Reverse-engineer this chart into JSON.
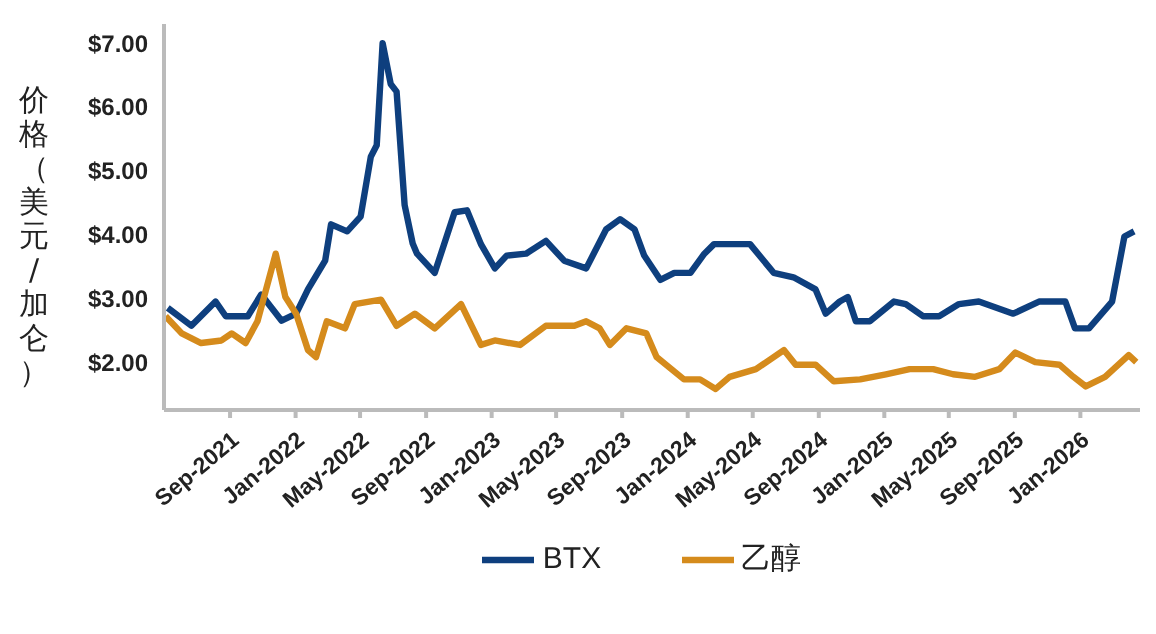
{
  "chart_data": {
    "type": "line",
    "ylabel": "价格（美元/加仑）",
    "legend": "bottom",
    "grid": false,
    "marker": "none",
    "line_style": "solid",
    "xlim": [
      "2021-05-01",
      "2026-04-22"
    ],
    "xticks": [
      {
        "value": "2021-09-01",
        "label": "Sep-2021"
      },
      {
        "value": "2022-01-01",
        "label": "Jan-2022"
      },
      {
        "value": "2022-05-01",
        "label": "May-2022"
      },
      {
        "value": "2022-09-01",
        "label": "Sep-2022"
      },
      {
        "value": "2023-01-01",
        "label": "Jan-2023"
      },
      {
        "value": "2023-05-01",
        "label": "May-2023"
      },
      {
        "value": "2023-09-01",
        "label": "Sep-2023"
      },
      {
        "value": "2024-01-01",
        "label": "Jan-2024"
      },
      {
        "value": "2024-05-01",
        "label": "May-2024"
      },
      {
        "value": "2024-09-01",
        "label": "Sep-2024"
      },
      {
        "value": "2025-01-01",
        "label": "Jan-2025"
      },
      {
        "value": "2025-05-01",
        "label": "May-2025"
      },
      {
        "value": "2025-09-01",
        "label": "Sep-2025"
      },
      {
        "value": "2026-01-01",
        "label": "Jan-2026"
      }
    ],
    "ylim": [
      1.25,
      7.3
    ],
    "yticks": [
      {
        "value": 2,
        "label": "$2.00"
      },
      {
        "value": 3,
        "label": "$3.00"
      },
      {
        "value": 4,
        "label": "$4.00"
      },
      {
        "value": 5,
        "label": "$5.00"
      },
      {
        "value": 6,
        "label": "$6.00"
      },
      {
        "value": 7,
        "label": "$7.00"
      }
    ],
    "series": [
      {
        "name": "BTX",
        "color": "#0e3f7e",
        "x": [
          "2021-05-08",
          "2021-06-21",
          "2021-08-05",
          "2021-08-24",
          "2021-10-04",
          "2021-10-29",
          "2021-12-06",
          "2022-01-02",
          "2022-01-24",
          "2022-02-25",
          "2022-03-08",
          "2022-04-07",
          "2022-05-02",
          "2022-05-21",
          "2022-06-01",
          "2022-06-12",
          "2022-06-27",
          "2022-07-08",
          "2022-07-23",
          "2022-08-07",
          "2022-08-15",
          "2022-09-17",
          "2022-10-24",
          "2022-11-16",
          "2022-12-12",
          "2023-01-07",
          "2023-01-29",
          "2023-03-06",
          "2023-04-12",
          "2023-05-16",
          "2023-06-26",
          "2023-08-02",
          "2023-08-28",
          "2023-09-24",
          "2023-10-12",
          "2023-11-11",
          "2023-12-07",
          "2024-01-06",
          "2024-02-01",
          "2024-02-19",
          "2024-04-26",
          "2024-06-09",
          "2024-07-16",
          "2024-08-26",
          "2024-09-14",
          "2024-10-10",
          "2024-10-25",
          "2024-11-09",
          "2024-12-05",
          "2025-01-19",
          "2025-02-10",
          "2025-03-14",
          "2025-04-13",
          "2025-05-20",
          "2025-06-26",
          "2025-08-29",
          "2025-10-16",
          "2025-12-04",
          "2025-12-22",
          "2026-01-17",
          "2026-03-01",
          "2026-03-24",
          "2026-04-11"
        ],
        "values": [
          2.85,
          2.57,
          2.95,
          2.72,
          2.72,
          3.06,
          2.65,
          2.76,
          3.14,
          3.59,
          4.16,
          4.05,
          4.28,
          5.22,
          5.4,
          7.0,
          6.36,
          6.24,
          4.46,
          3.86,
          3.7,
          3.4,
          4.35,
          4.38,
          3.85,
          3.47,
          3.67,
          3.7,
          3.9,
          3.59,
          3.47,
          4.08,
          4.24,
          4.08,
          3.67,
          3.29,
          3.4,
          3.4,
          3.7,
          3.85,
          3.85,
          3.4,
          3.33,
          3.14,
          2.76,
          2.95,
          3.02,
          2.64,
          2.64,
          2.95,
          2.91,
          2.72,
          2.72,
          2.91,
          2.95,
          2.76,
          2.95,
          2.95,
          2.53,
          2.53,
          2.95,
          3.97,
          4.05
        ]
      },
      {
        "name": "乙醇",
        "color": "#d58b1c",
        "x": [
          "2021-05-04",
          "2021-06-03",
          "2021-07-09",
          "2021-08-16",
          "2021-09-04",
          "2021-09-30",
          "2021-10-22",
          "2021-11-25",
          "2021-12-13",
          "2022-01-02",
          "2022-01-24",
          "2022-02-08",
          "2022-02-28",
          "2022-04-03",
          "2022-04-21",
          "2022-06-09",
          "2022-07-08",
          "2022-08-11",
          "2022-09-17",
          "2022-11-05",
          "2022-12-12",
          "2023-01-07",
          "2023-02-23",
          "2023-04-12",
          "2023-06-04",
          "2023-06-26",
          "2023-07-21",
          "2023-08-09",
          "2023-09-09",
          "2023-10-16",
          "2023-11-04",
          "2023-12-25",
          "2024-01-24",
          "2024-02-22",
          "2024-03-19",
          "2024-05-07",
          "2024-06-28",
          "2024-07-20",
          "2024-08-26",
          "2024-09-29",
          "2024-11-17",
          "2025-01-04",
          "2025-02-17",
          "2025-04-02",
          "2025-05-09",
          "2025-06-19",
          "2025-08-03",
          "2025-09-02",
          "2025-10-09",
          "2025-11-23",
          "2025-12-19",
          "2026-01-11",
          "2026-02-16",
          "2026-04-01",
          "2026-04-15"
        ],
        "values": [
          2.72,
          2.45,
          2.3,
          2.34,
          2.45,
          2.3,
          2.64,
          3.7,
          3.02,
          2.76,
          2.19,
          2.08,
          2.64,
          2.53,
          2.91,
          2.98,
          2.57,
          2.76,
          2.53,
          2.91,
          2.27,
          2.34,
          2.27,
          2.57,
          2.57,
          2.64,
          2.53,
          2.27,
          2.53,
          2.45,
          2.08,
          1.73,
          1.73,
          1.58,
          1.77,
          1.89,
          2.19,
          1.96,
          1.96,
          1.7,
          1.73,
          1.81,
          1.89,
          1.89,
          1.81,
          1.77,
          1.89,
          2.15,
          2.0,
          1.96,
          1.77,
          1.62,
          1.77,
          2.11,
          2.0
        ]
      }
    ]
  }
}
